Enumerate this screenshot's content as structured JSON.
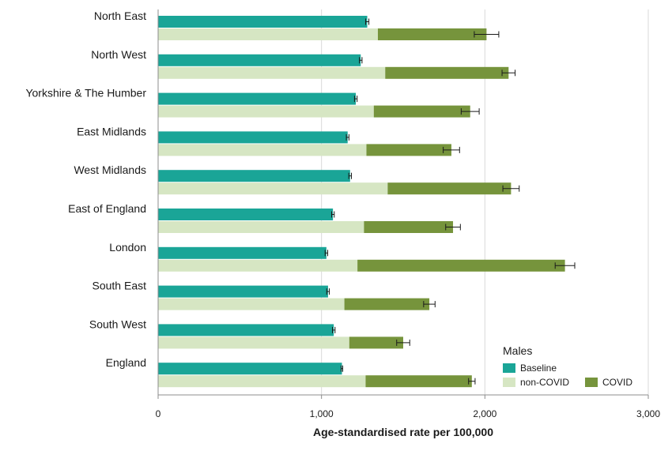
{
  "chart_data": {
    "type": "bar",
    "orientation": "horizontal",
    "categories": [
      "North East",
      "North West",
      "Yorkshire & The Humber",
      "East Midlands",
      "West Midlands",
      "East of England",
      "London",
      "South East",
      "South West",
      "England"
    ],
    "series": [
      {
        "name": "Baseline",
        "values": [
          1280,
          1240,
          1210,
          1160,
          1175,
          1070,
          1030,
          1040,
          1075,
          1125
        ],
        "error": [
          10,
          8,
          8,
          8,
          8,
          8,
          8,
          8,
          8,
          5
        ]
      },
      {
        "name": "non-COVID",
        "values": [
          1345,
          1390,
          1320,
          1275,
          1405,
          1260,
          1220,
          1140,
          1170,
          1270
        ],
        "stacked": true
      },
      {
        "name": "COVID",
        "values": [
          665,
          755,
          590,
          520,
          755,
          545,
          1270,
          520,
          330,
          650
        ],
        "stacked": true,
        "total_error": [
          75,
          40,
          55,
          50,
          50,
          45,
          60,
          35,
          40,
          20
        ]
      }
    ],
    "xlabel": "Age-standardised rate per 100,000",
    "ylabel": "",
    "xlim": [
      0,
      3000
    ],
    "xticks": [
      0,
      1000,
      2000,
      3000
    ],
    "xtick_labels": [
      "0",
      "1,000",
      "2,000",
      "3,000"
    ],
    "grid": "vertical",
    "legend": {
      "title": "Males",
      "placement": "bottom-right",
      "items": [
        "Baseline",
        "non-COVID",
        "COVID"
      ]
    },
    "colors": {
      "Baseline": "#1aa597",
      "non-COVID": "#d6e6c3",
      "COVID": "#76943c",
      "grid": "#d9d9d9",
      "axis": "#8c8c8c",
      "errorbar": "#1a1a1a"
    }
  }
}
